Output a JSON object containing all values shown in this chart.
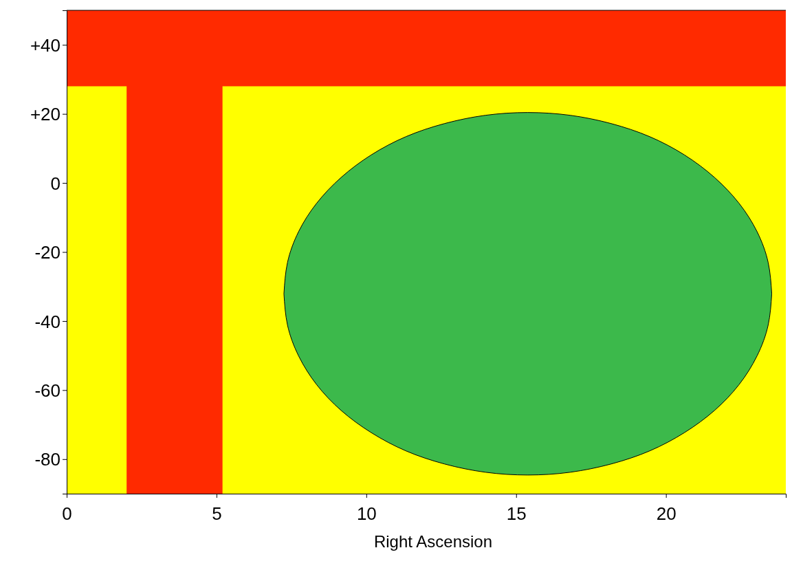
{
  "chart_data": {
    "type": "line",
    "xlabel": "Right Ascension",
    "xlim": [
      0,
      24
    ],
    "ylim": [
      -90,
      50
    ],
    "xticks": [
      0,
      5,
      10,
      15,
      20
    ],
    "yticks": [
      {
        "value": 40,
        "label": "+40"
      },
      {
        "value": 20,
        "label": "+20"
      },
      0,
      -20,
      -40,
      -60,
      -80
    ],
    "grid": false,
    "bands": [
      {
        "axis": "y",
        "from": -90,
        "to": 50,
        "color": "#ffff00"
      },
      {
        "axis": "x",
        "from": 2,
        "to": 5.2,
        "color": "#ff2a00"
      },
      {
        "axis": "y",
        "from": 28,
        "to": 50,
        "color": "#ff2a00"
      }
    ],
    "series": [
      {
        "type": "line",
        "color": "#3cb94b",
        "x": [
          7.25,
          7.37,
          7.74,
          8.34,
          9.16,
          10.16,
          11.32,
          12.61,
          13.98,
          15.39,
          16.8,
          18.17,
          19.46,
          20.62,
          21.62,
          22.44,
          23.04,
          23.41,
          23.53
        ],
        "values": [
          null,
          null,
          null,
          null,
          null,
          null,
          null,
          null,
          null,
          null,
          null,
          null,
          null,
          null,
          null,
          null,
          null,
          null,
          null
        ],
        "upper": [
          -32.1,
          -23.0,
          -14.1,
          -5.9,
          1.6,
          8.1,
          13.4,
          17.2,
          19.6,
          20.4,
          19.6,
          17.2,
          13.4,
          8.1,
          1.6,
          -5.9,
          -14.1,
          -23.0,
          -32.1
        ],
        "lower": [
          -32.1,
          -41.2,
          -50.1,
          -58.4,
          -65.9,
          -72.3,
          -77.6,
          -81.4,
          -83.8,
          -84.6,
          -83.8,
          -81.4,
          -77.6,
          -72.3,
          -65.9,
          -58.4,
          -50.1,
          -41.2,
          -32.1
        ]
      }
    ]
  }
}
